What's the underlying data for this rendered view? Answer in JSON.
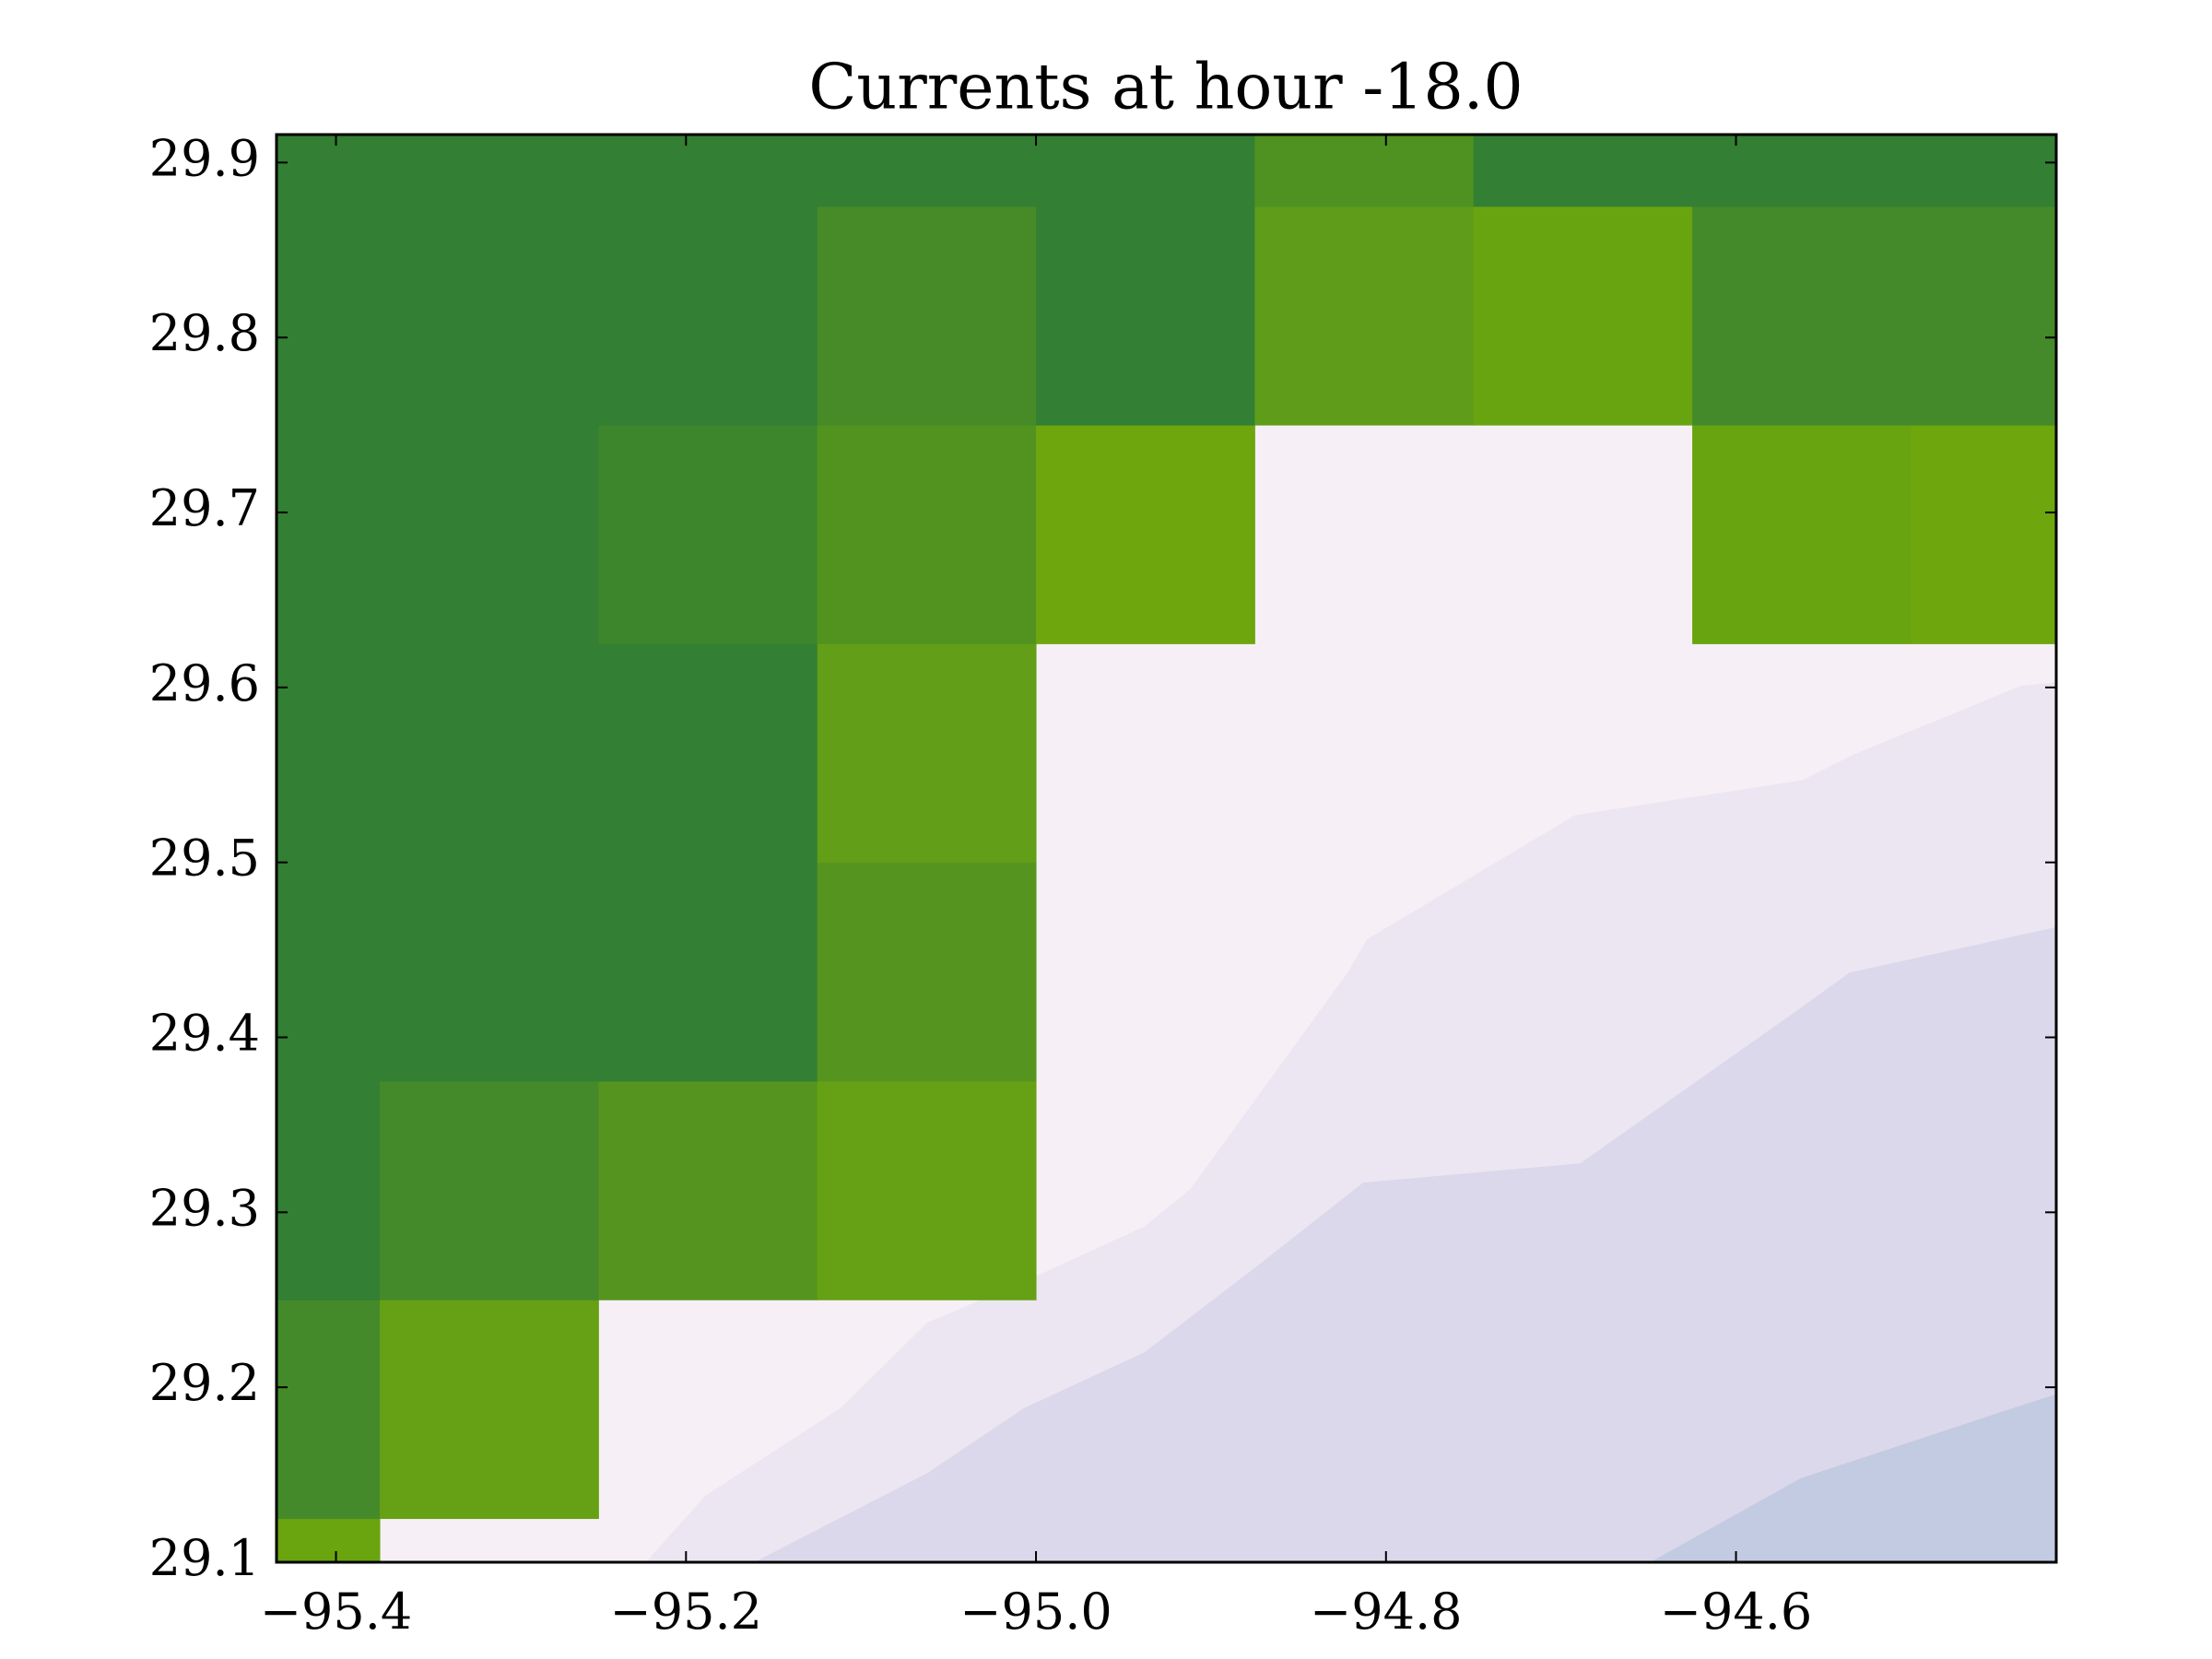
{
  "chart_data": {
    "type": "heatmap",
    "title": "Currents at hour -18.0",
    "xlim": [
      -95.434,
      -94.417
    ],
    "ylim": [
      29.1,
      29.916
    ],
    "xticks": [
      {
        "value": -95.4,
        "label": "−95.4"
      },
      {
        "value": -95.2,
        "label": "−95.2"
      },
      {
        "value": -95.0,
        "label": "−95.0"
      },
      {
        "value": -94.8,
        "label": "−94.8"
      },
      {
        "value": -94.6,
        "label": "−94.6"
      }
    ],
    "yticks": [
      29.1,
      29.2,
      29.3,
      29.4,
      29.5,
      29.6,
      29.7,
      29.8,
      29.9
    ],
    "background_color": "#f6f0f6",
    "contours": [
      {
        "color": "#ebe6f2",
        "x": [
          -95.223,
          -95.189,
          -95.112,
          -95.062,
          -95.001,
          -94.938,
          -94.912,
          -94.822,
          -94.811,
          -94.692,
          -94.562,
          -94.532,
          -94.437,
          -94.417
        ],
        "y": [
          29.1,
          29.138,
          29.188,
          29.237,
          29.263,
          29.292,
          29.313,
          29.437,
          29.456,
          29.527,
          29.547,
          29.562,
          29.601,
          29.603
        ]
      },
      {
        "color": "#dad8ea",
        "x": [
          -95.161,
          -95.062,
          -95.007,
          -94.938,
          -94.874,
          -94.813,
          -94.689,
          -94.567,
          -94.535,
          -94.417
        ],
        "y": [
          29.1,
          29.151,
          29.188,
          29.22,
          29.269,
          29.317,
          29.328,
          29.414,
          29.437,
          29.463
        ]
      },
      {
        "color": "#c3cbe2",
        "x": [
          -94.649,
          -94.563,
          -94.442,
          -94.417
        ],
        "y": [
          29.1,
          29.148,
          29.188,
          29.196
        ]
      }
    ],
    "x_edges": [
      -95.5,
      -95.375,
      -95.25,
      -95.125,
      -95.0,
      -94.875,
      -94.75,
      -94.625,
      -94.5,
      -94.375
    ],
    "y_edges": [
      29.0,
      29.125,
      29.25,
      29.375,
      29.5,
      29.625,
      29.75,
      29.875,
      30.0
    ],
    "cell_colors": [
      [
        "#6aa40f",
        null,
        null,
        null,
        null,
        null,
        null,
        null,
        null
      ],
      [
        "#448a2a",
        "#66a014",
        null,
        null,
        null,
        null,
        null,
        null,
        null
      ],
      [
        "#337f33",
        "#448a2a",
        "#55951f",
        "#66a014",
        null,
        null,
        null,
        null,
        null
      ],
      [
        "#337f33",
        "#337f33",
        "#337f33",
        "#55951f",
        null,
        null,
        null,
        null,
        null
      ],
      [
        "#337f33",
        "#337f33",
        "#337f33",
        "#629e17",
        null,
        null,
        null,
        null,
        null
      ],
      [
        "#337f33",
        "#337f33",
        "#3e862c",
        "#52931f",
        "#6ea60e",
        null,
        null,
        "#68a410",
        "#6ea60e"
      ],
      [
        "#337f33",
        "#337f33",
        "#337f33",
        "#478b28",
        "#337f33",
        "#5e9c19",
        "#68a410",
        "#448a2a",
        "#448a2a"
      ],
      [
        "#337f33",
        "#337f33",
        "#337f33",
        "#337f33",
        "#337f33",
        "#4f9222",
        "#337f33",
        "#337f33",
        "#337f33"
      ]
    ]
  }
}
